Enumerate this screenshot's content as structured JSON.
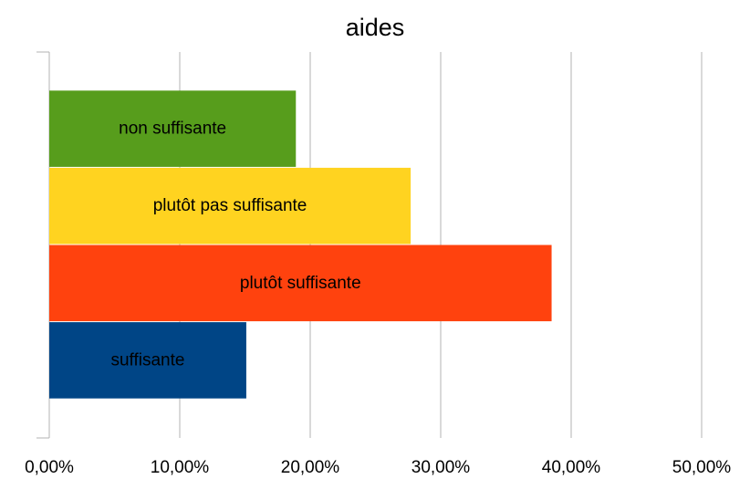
{
  "chart_data": {
    "type": "bar",
    "orientation": "horizontal",
    "title": "aides",
    "categories": [
      "non suffisante",
      "plutôt pas suffisante",
      "plutôt suffisante",
      "suffisante"
    ],
    "values": [
      18.9,
      27.7,
      38.5,
      15.1
    ],
    "colors": [
      "#579d1c",
      "#ffd320",
      "#ff420e",
      "#004586"
    ],
    "xlim": [
      0,
      50
    ],
    "xticks": [
      {
        "value": 0,
        "label": "0,00%"
      },
      {
        "value": 10,
        "label": "10,00%"
      },
      {
        "value": 20,
        "label": "20,00%"
      },
      {
        "value": 30,
        "label": "30,00%"
      },
      {
        "value": 40,
        "label": "40,00%"
      },
      {
        "value": 50,
        "label": "50,00%"
      }
    ],
    "grid": true
  }
}
